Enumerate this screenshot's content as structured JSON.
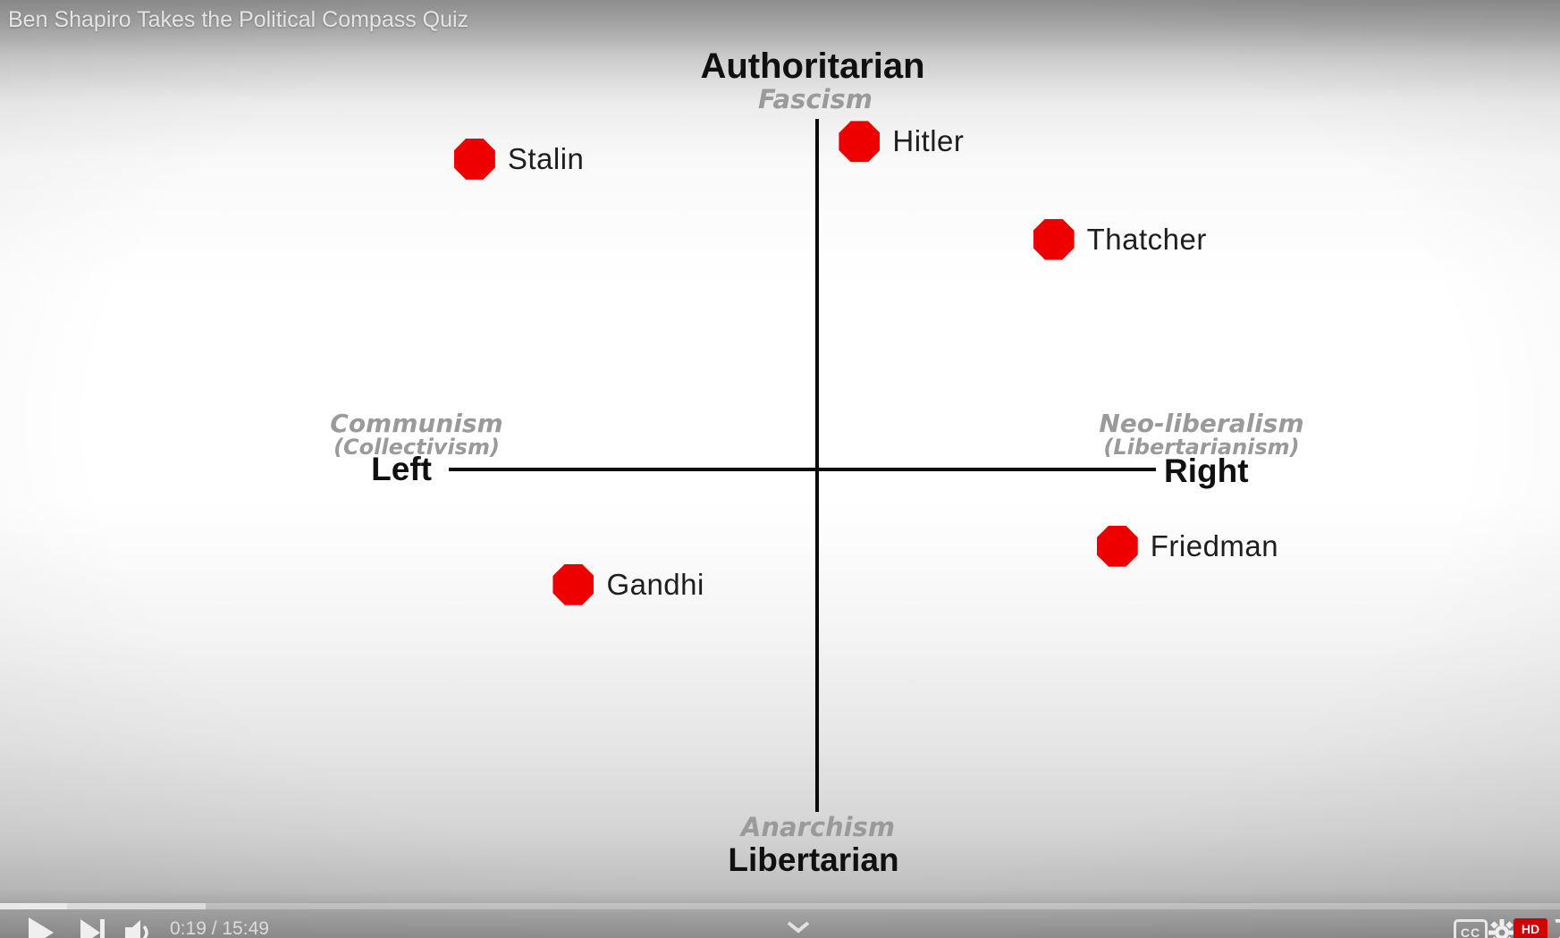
{
  "video": {
    "title": "Ben Shapiro Takes the Political Compass Quiz"
  },
  "player": {
    "time_display": "0:19 / 15:49",
    "current_time": "0:19",
    "duration": "15:49",
    "progress": {
      "played_percent": 4.3,
      "buffered_percent": 13.2
    },
    "cc_label": "CC",
    "hd_label": "HD",
    "controls": [
      "play-icon",
      "next-icon",
      "volume-icon",
      "chevron-down-icon",
      "subtitles-icon",
      "settings-gear-icon"
    ]
  },
  "chart_data": {
    "type": "scatter",
    "title": "Political Compass",
    "axes": {
      "top": {
        "main": "Authoritarian",
        "sub": "Fascism"
      },
      "bottom": {
        "main": "Libertarian",
        "sub": "Anarchism"
      },
      "left": {
        "main": "Left",
        "sub1": "Communism",
        "sub2": "(Collectivism)"
      },
      "right": {
        "main": "Right",
        "sub1": "Neo-liberalism",
        "sub2": "(Libertarianism)"
      }
    },
    "xlim": [
      -10,
      10
    ],
    "ylim": [
      -10,
      10
    ],
    "grid": false,
    "point_color": "#ee0000",
    "points": [
      {
        "name": "Stalin",
        "x": -9.7,
        "y": 8.9
      },
      {
        "name": "Hitler",
        "x": 1.2,
        "y": 9.4
      },
      {
        "name": "Thatcher",
        "x": 6.7,
        "y": 6.6
      },
      {
        "name": "Friedman",
        "x": 8.5,
        "y": -2.2
      },
      {
        "name": "Gandhi",
        "x": -6.9,
        "y": -3.3
      }
    ]
  },
  "colors": {
    "dot_red": "#ee0000",
    "hd_badge_red": "#d30000",
    "axis_black": "#0b0b0b",
    "sub_label_gray": "#9a9a9a"
  }
}
